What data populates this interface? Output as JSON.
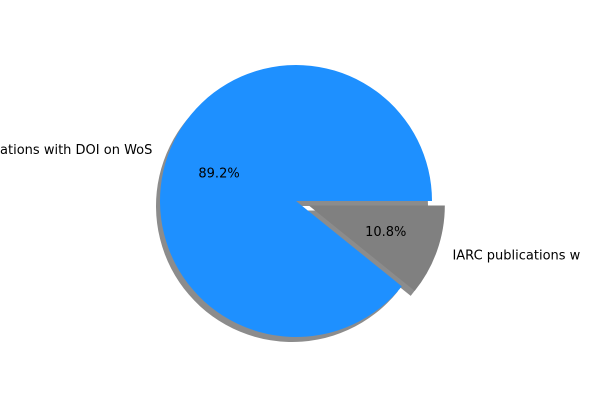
{
  "chart_data": {
    "type": "pie",
    "slices": [
      {
        "label": "IARC publications with DOI on WoS",
        "value": 89.2,
        "display": "89.2%",
        "color": "#1e90ff",
        "exploded": false
      },
      {
        "label": "IARC publications w",
        "value": 10.8,
        "display": "10.8%",
        "color": "#808080",
        "exploded": true
      }
    ],
    "shadow": true,
    "start_angle": "counterclockwise from 3 o'clock"
  }
}
